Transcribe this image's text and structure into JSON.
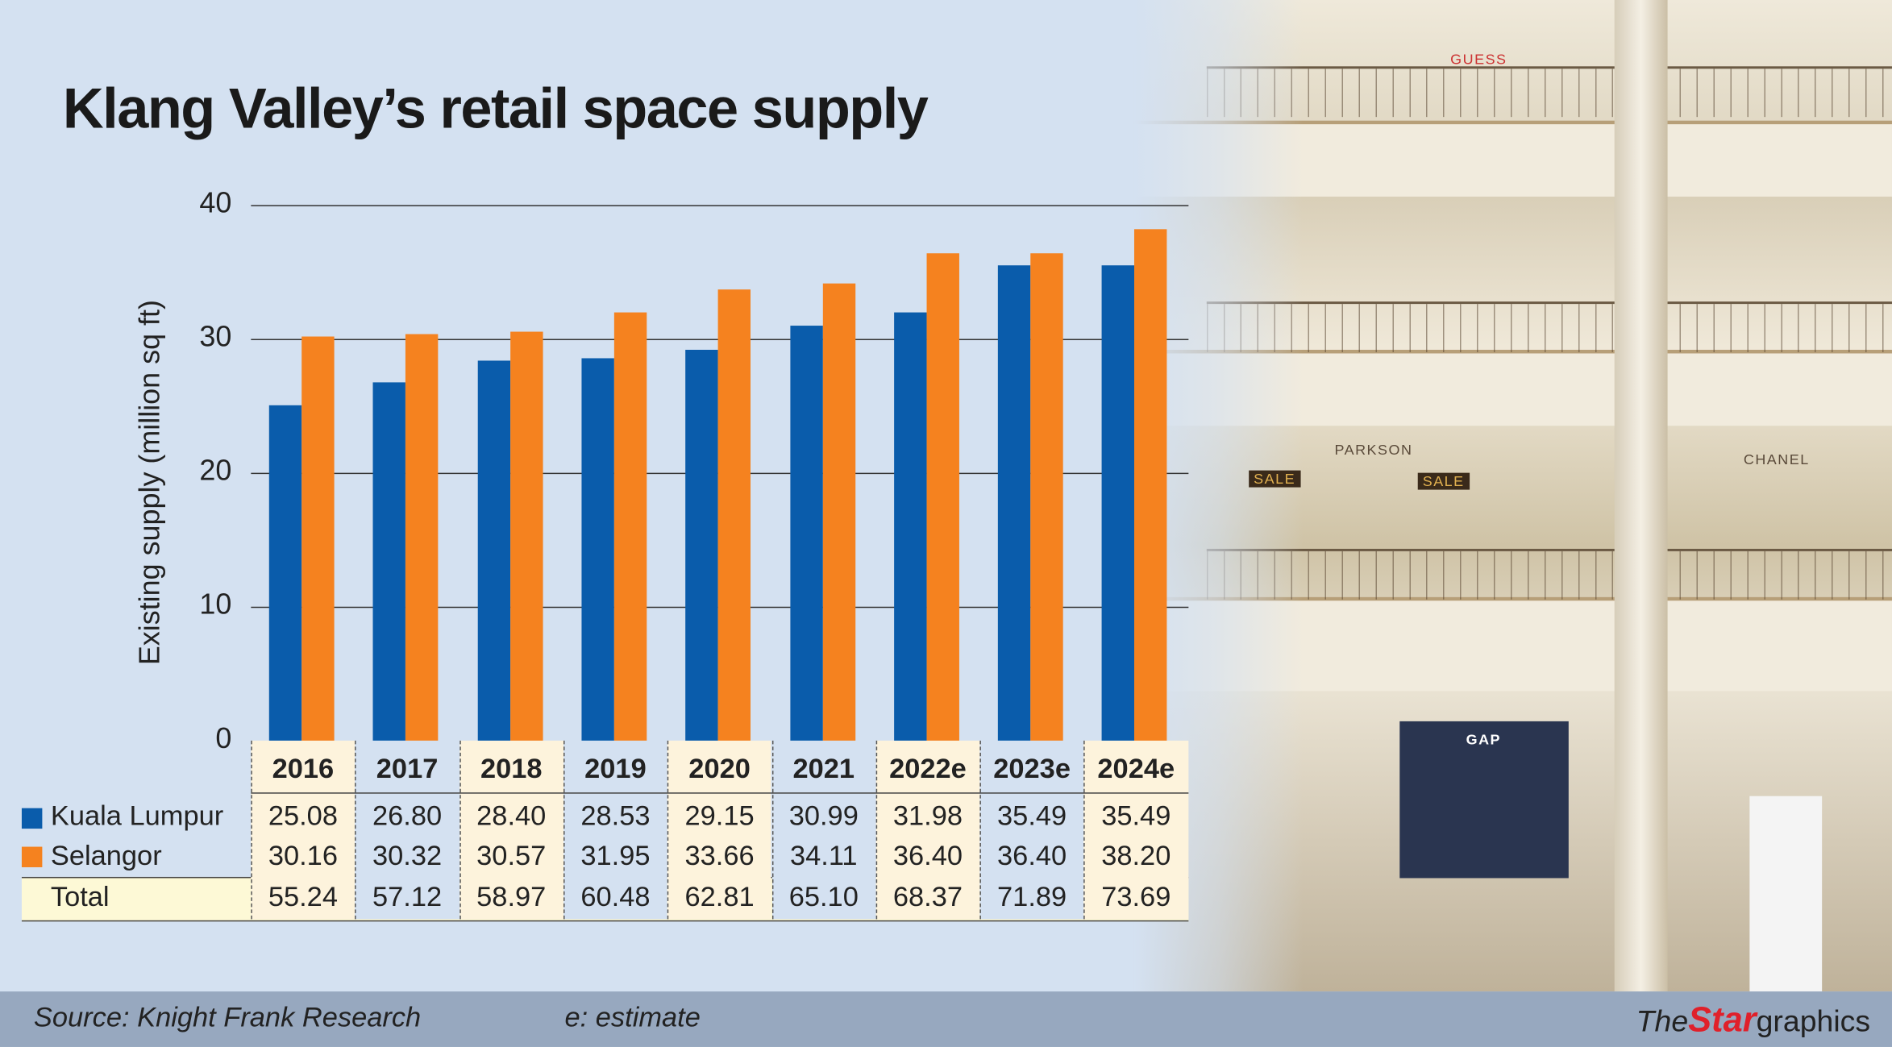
{
  "chart_data": {
    "type": "bar",
    "title": "Klang Valley’s retail space supply",
    "ylabel": "Existing supply (million sq ft)",
    "ylim": [
      0,
      40
    ],
    "yticks": [
      "0",
      "10",
      "20",
      "30",
      "40"
    ],
    "grid": true,
    "categories": [
      "2016",
      "2017",
      "2018",
      "2019",
      "2020",
      "2021",
      "2022e",
      "2023e",
      "2024e"
    ],
    "series": [
      {
        "name": "Kuala Lumpur",
        "color": "#0a5cab",
        "values": [
          25.08,
          26.8,
          28.4,
          28.53,
          29.15,
          30.99,
          31.98,
          35.49,
          35.49
        ],
        "labels": [
          "25.08",
          "26.80",
          "28.40",
          "28.53",
          "29.15",
          "30.99",
          "31.98",
          "35.49",
          "35.49"
        ]
      },
      {
        "name": "Selangor",
        "color": "#f5821f",
        "values": [
          30.16,
          30.32,
          30.57,
          31.95,
          33.66,
          34.11,
          36.4,
          36.4,
          38.2
        ],
        "labels": [
          "30.16",
          "30.32",
          "30.57",
          "31.95",
          "33.66",
          "34.11",
          "36.40",
          "36.40",
          "38.20"
        ]
      }
    ],
    "total": {
      "name": "Total",
      "labels": [
        "55.24",
        "57.12",
        "58.97",
        "60.48",
        "62.81",
        "65.10",
        "68.37",
        "71.89",
        "73.69"
      ]
    }
  },
  "footer": {
    "source": "Source: Knight Frank Research",
    "note": "e: estimate",
    "brand_the": "The",
    "brand_star": "Star",
    "brand_graphics": "graphics"
  },
  "photo": {
    "signs": [
      "GUESS",
      "PARKSON",
      "SALE",
      "SALE",
      "CHANEL",
      "GAP"
    ]
  }
}
